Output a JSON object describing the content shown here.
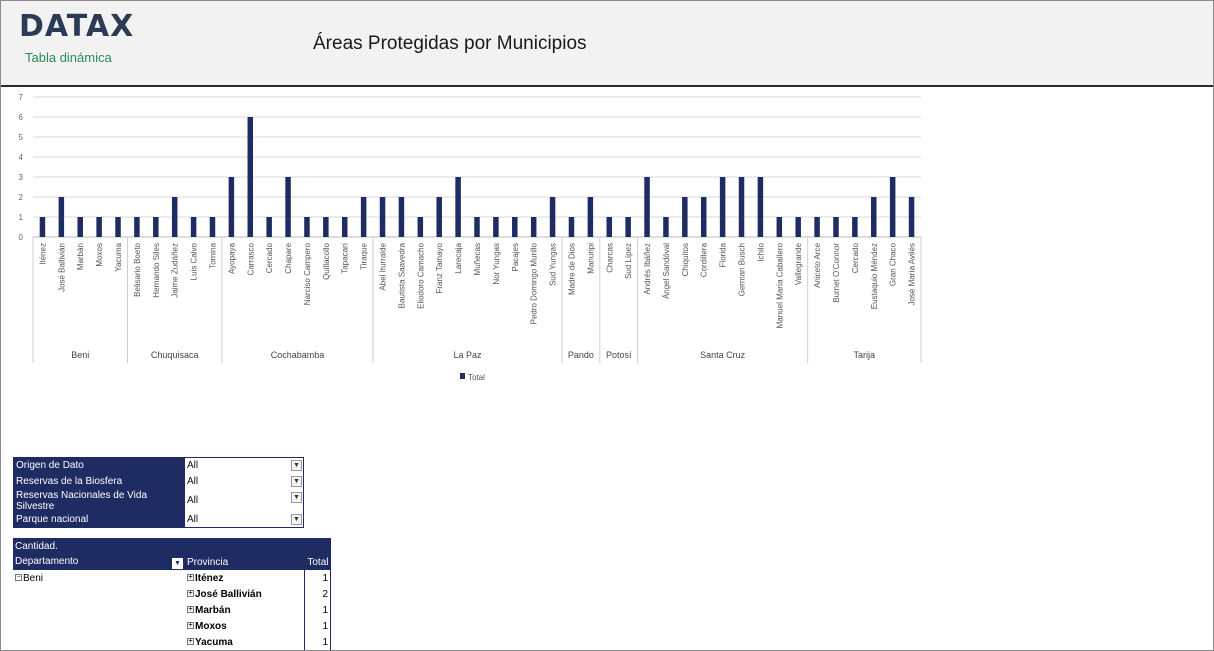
{
  "header": {
    "brand": "DATAX",
    "subtitle": "Tabla dinámica",
    "title": "Áreas Protegidas por Municipios"
  },
  "colors": {
    "bar": "#1f2b63",
    "header_bg": "#f2f2f2",
    "accent_green": "#2e8b57"
  },
  "chart_data": {
    "type": "bar",
    "ylim": [
      0,
      7
    ],
    "yticks": [
      0,
      1,
      2,
      3,
      4,
      5,
      6,
      7
    ],
    "grid": true,
    "legend_position": "bottom",
    "series": [
      {
        "name": "Total"
      }
    ],
    "groups": [
      {
        "name": "Beni",
        "items": [
          [
            "Iténez",
            1
          ],
          [
            "José Ballivián",
            2
          ],
          [
            "Marbán",
            1
          ],
          [
            "Moxos",
            1
          ],
          [
            "Yacuma",
            1
          ]
        ]
      },
      {
        "name": "Chuquisaca",
        "items": [
          [
            "Belisario Boeto",
            1
          ],
          [
            "Hernando Siles",
            1
          ],
          [
            "Jaime Zudáñez",
            2
          ],
          [
            "Luis Calvo",
            1
          ],
          [
            "Tomina",
            1
          ]
        ]
      },
      {
        "name": "Cochabamba",
        "items": [
          [
            "Ayopaya",
            3
          ],
          [
            "Carrasco",
            6
          ],
          [
            "Cercado",
            1
          ],
          [
            "Chapare",
            3
          ],
          [
            "Narciso Campero",
            1
          ],
          [
            "Quillacollo",
            1
          ],
          [
            "Tapacarí",
            1
          ],
          [
            "Tiraque",
            2
          ]
        ]
      },
      {
        "name": "La Paz",
        "items": [
          [
            "Abel Iturralde",
            2
          ],
          [
            "Bautista Saavedra",
            2
          ],
          [
            "Eliodoro Camacho",
            1
          ],
          [
            "Franz Tamayo",
            2
          ],
          [
            "Larecaja",
            3
          ],
          [
            "Muñecas",
            1
          ],
          [
            "Nor Yungas",
            1
          ],
          [
            "Pacajes",
            1
          ],
          [
            "Pedro Domingo Murillo",
            1
          ],
          [
            "Sud Yungas",
            2
          ]
        ]
      },
      {
        "name": "Pando",
        "items": [
          [
            "Madre de Dios",
            1
          ],
          [
            "Manuripi",
            2
          ]
        ]
      },
      {
        "name": "Potosí",
        "items": [
          [
            "Charcas",
            1
          ],
          [
            "Sud Lípez",
            1
          ]
        ]
      },
      {
        "name": "Santa Cruz",
        "items": [
          [
            "Andrés Ibáñez",
            3
          ],
          [
            "Ángel Sandóval",
            1
          ],
          [
            "Chiquitos",
            2
          ],
          [
            "Cordillera",
            2
          ],
          [
            "Florida",
            3
          ],
          [
            "German Busch",
            3
          ],
          [
            "Ichilo",
            3
          ],
          [
            "Manuel María Caballero",
            1
          ],
          [
            "Vallegrande",
            1
          ]
        ]
      },
      {
        "name": "Tarija",
        "items": [
          [
            "Aniceto Arce",
            1
          ],
          [
            "Burnet O'Connor",
            1
          ],
          [
            "Cercado",
            1
          ],
          [
            "Eustaquio Méndez",
            2
          ],
          [
            "Gran Chaco",
            3
          ],
          [
            "José María Avilés",
            2
          ]
        ]
      }
    ]
  },
  "filters": [
    {
      "label": "Origen de Dato",
      "value": "All"
    },
    {
      "label": "Reservas de la Biosfera",
      "value": "All"
    },
    {
      "label": "Reservas Nacionales de Vida Silvestre",
      "value": "All"
    },
    {
      "label": "Parque nacional",
      "value": "All"
    }
  ],
  "pivot": {
    "measure": "Cantidad.",
    "col_dept": "Departamento",
    "col_prov": "Provincia",
    "col_total": "Total",
    "dept": "Beni",
    "rows": [
      {
        "provincia": "Iténez",
        "total": "1"
      },
      {
        "provincia": "José Ballivián",
        "total": "2"
      },
      {
        "provincia": "Marbán",
        "total": "1"
      },
      {
        "provincia": "Moxos",
        "total": "1"
      },
      {
        "provincia": "Yacuma",
        "total": "1"
      }
    ]
  }
}
